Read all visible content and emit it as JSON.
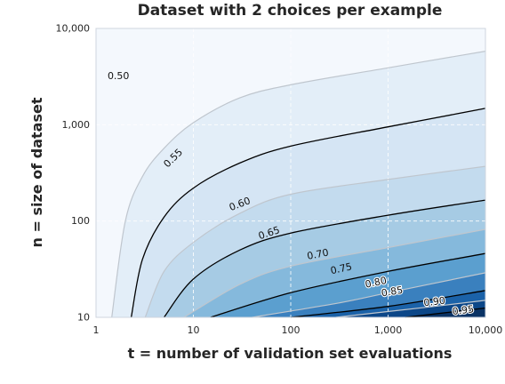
{
  "chart_data": {
    "type": "contour",
    "title": "Dataset with 2 choices per example",
    "xlabel": "t = number of validation set evaluations",
    "ylabel": "n = size of dataset",
    "x_scale": "log",
    "y_scale": "log",
    "xlim": [
      1,
      10000
    ],
    "ylim": [
      10,
      10000
    ],
    "x_ticks": [
      {
        "value": 1,
        "label": "1"
      },
      {
        "value": 10,
        "label": "10"
      },
      {
        "value": 100,
        "label": "100"
      },
      {
        "value": 1000,
        "label": "1,000"
      },
      {
        "value": 10000,
        "label": "10,000"
      }
    ],
    "y_ticks": [
      {
        "value": 10,
        "label": "10"
      },
      {
        "value": 100,
        "label": "100"
      },
      {
        "value": 1000,
        "label": "1,000"
      },
      {
        "value": 10000,
        "label": "10,000"
      }
    ],
    "grid": true,
    "colormap": "Blues",
    "levels": [
      {
        "value": 0.5,
        "label": "0.50",
        "line_color": "#bfc6ce",
        "fill": "#f4f8fd",
        "points": [
          [
            1.45,
            10
          ],
          [
            2,
            100
          ],
          [
            3,
            290
          ],
          [
            5,
            570
          ],
          [
            10,
            1050
          ],
          [
            30,
            1900
          ],
          [
            100,
            2600
          ],
          [
            1000,
            3900
          ],
          [
            10000,
            5800
          ]
        ],
        "label_x": 1.7,
        "label_y": 3200
      },
      {
        "value": 0.55,
        "label": "0.55",
        "line_color": "#000000",
        "fill": "#e3eef8",
        "points": [
          [
            2.3,
            10
          ],
          [
            3,
            40
          ],
          [
            5,
            110
          ],
          [
            10,
            220
          ],
          [
            30,
            400
          ],
          [
            100,
            600
          ],
          [
            1000,
            950
          ],
          [
            10000,
            1480
          ]
        ],
        "label_x": 6.2,
        "label_y": 450
      },
      {
        "value": 0.6,
        "label": "0.60",
        "line_color": "#bfc6ce",
        "fill": "#d5e5f4",
        "points": [
          [
            3.2,
            10
          ],
          [
            5,
            30
          ],
          [
            10,
            60
          ],
          [
            30,
            120
          ],
          [
            100,
            190
          ],
          [
            1000,
            270
          ],
          [
            10000,
            370
          ]
        ],
        "label_x": 30,
        "label_y": 150
      },
      {
        "value": 0.65,
        "label": "0.65",
        "line_color": "#000000",
        "fill": "#c3dbee",
        "points": [
          [
            5,
            10
          ],
          [
            10,
            25
          ],
          [
            30,
            50
          ],
          [
            100,
            75
          ],
          [
            1000,
            115
          ],
          [
            10000,
            165
          ]
        ],
        "label_x": 60,
        "label_y": 75
      },
      {
        "value": 0.7,
        "label": "0.70",
        "line_color": "#bfc6ce",
        "fill": "#a6cbe4",
        "points": [
          [
            8,
            10
          ],
          [
            30,
            22
          ],
          [
            100,
            34
          ],
          [
            1000,
            53
          ],
          [
            10000,
            82
          ]
        ],
        "label_x": 190,
        "label_y": 45
      },
      {
        "value": 0.75,
        "label": "0.75",
        "line_color": "#000000",
        "fill": "#85b9dc",
        "points": [
          [
            15,
            10
          ],
          [
            100,
            18
          ],
          [
            1000,
            30
          ],
          [
            10000,
            46
          ]
        ],
        "label_x": 330,
        "label_y": 32
      },
      {
        "value": 0.8,
        "label": "0.80",
        "line_color": "#bfc6ce",
        "fill": "#5b9fcf",
        "points": [
          [
            40,
            10
          ],
          [
            300,
            14
          ],
          [
            1000,
            18
          ],
          [
            10000,
            29
          ]
        ],
        "label_x": 750,
        "label_y": 23
      },
      {
        "value": 0.85,
        "label": "0.85",
        "line_color": "#000000",
        "fill": "#3a80be",
        "points": [
          [
            100,
            10
          ],
          [
            1000,
            13
          ],
          [
            10000,
            19
          ]
        ],
        "label_x": 1100,
        "label_y": 18.5
      },
      {
        "value": 0.9,
        "label": "0.90",
        "line_color": "#bfc6ce",
        "fill": "#1b62a8",
        "points": [
          [
            290,
            10
          ],
          [
            3000,
            13
          ],
          [
            10000,
            15
          ]
        ],
        "label_x": 3000,
        "label_y": 14.5
      },
      {
        "value": 0.95,
        "label": "0.95",
        "line_color": "#000000",
        "fill": "#0c4788",
        "points": [
          [
            1500,
            10
          ],
          [
            5000,
            11.5
          ],
          [
            10000,
            12.5
          ]
        ],
        "label_x": 5900,
        "label_y": 11.8
      }
    ],
    "darkest_fill": "#0a3365"
  }
}
